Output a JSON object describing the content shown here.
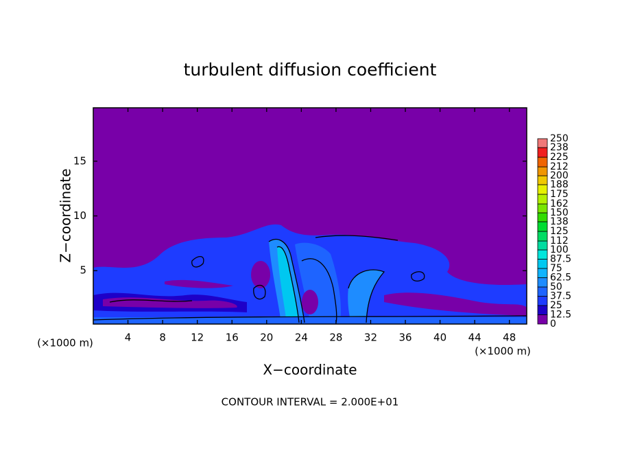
{
  "chart_data": {
    "type": "contour",
    "title": "turbulent diffusion coefficient",
    "x_label": "X−coordinate",
    "y_label": "Z−coordinate",
    "x_unit_labels": [
      "(×1000 m)",
      "(×1000 m)"
    ],
    "footer": "CONTOUR INTERVAL = 2.000E+01",
    "xlim": [
      0,
      50
    ],
    "xticks": [
      4,
      8,
      12,
      16,
      20,
      24,
      28,
      32,
      36,
      40,
      44,
      48
    ],
    "ylim": [
      0.125,
      19.875
    ],
    "yticks": [
      5,
      10,
      15
    ],
    "colorbar": {
      "levels": [
        0,
        12.5,
        25,
        37.5,
        50,
        62.5,
        75,
        87.5,
        100,
        112,
        125,
        138,
        150,
        162,
        175,
        188,
        200,
        212,
        225,
        238,
        250
      ],
      "colors": [
        "#7800a8",
        "#1e00c8",
        "#1e3cff",
        "#1e64ff",
        "#1e8cff",
        "#10b4ff",
        "#00c8f0",
        "#00e6dc",
        "#00dca0",
        "#00dc64",
        "#00dc32",
        "#32dc00",
        "#78e600",
        "#b4f000",
        "#e6f000",
        "#f0c800",
        "#f09600",
        "#f06400",
        "#f01e1e",
        "#f07878"
      ]
    }
  }
}
